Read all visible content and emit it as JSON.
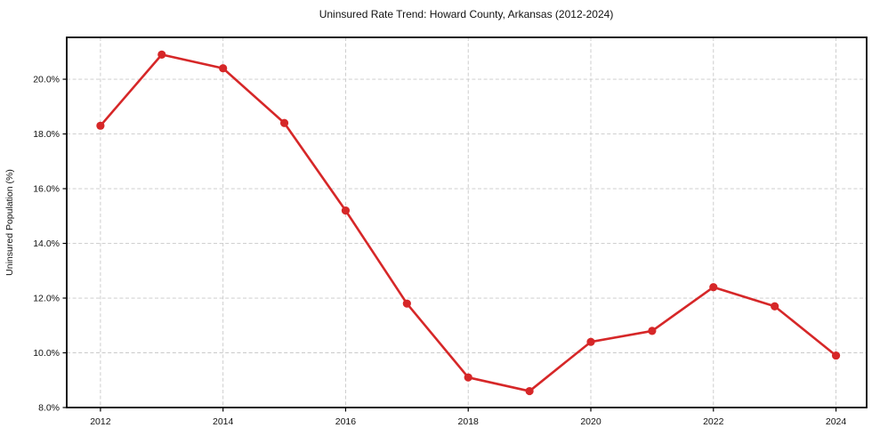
{
  "chart_data": {
    "type": "line",
    "title": "Uninsured Rate Trend: Howard County, Arkansas (2012-2024)",
    "xlabel": "",
    "ylabel": "Uninsured Population (%)",
    "x": [
      2012,
      2013,
      2014,
      2015,
      2016,
      2017,
      2018,
      2019,
      2020,
      2021,
      2022,
      2023,
      2024
    ],
    "values": [
      18.3,
      20.9,
      20.4,
      18.4,
      15.2,
      11.8,
      9.1,
      8.6,
      10.4,
      10.8,
      12.4,
      11.7,
      9.9
    ],
    "x_ticks": [
      2012,
      2014,
      2016,
      2018,
      2020,
      2022,
      2024
    ],
    "x_tick_labels": [
      "2012",
      "2014",
      "2016",
      "2018",
      "2020",
      "2022",
      "2024"
    ],
    "y_ticks": [
      8,
      10,
      12,
      14,
      16,
      18,
      20
    ],
    "y_tick_labels": [
      "8.0%",
      "10.0%",
      "12.0%",
      "14.0%",
      "16.0%",
      "18.0%",
      "20.0%"
    ],
    "xlim": [
      2011.45,
      2024.5
    ],
    "ylim": [
      8,
      21.53
    ],
    "grid": true,
    "legend": "none",
    "colors": {
      "line": "#d62728",
      "marker": "#d62728",
      "grid": "#c9c9c9",
      "frame": "#000000",
      "text": "#111111"
    }
  }
}
